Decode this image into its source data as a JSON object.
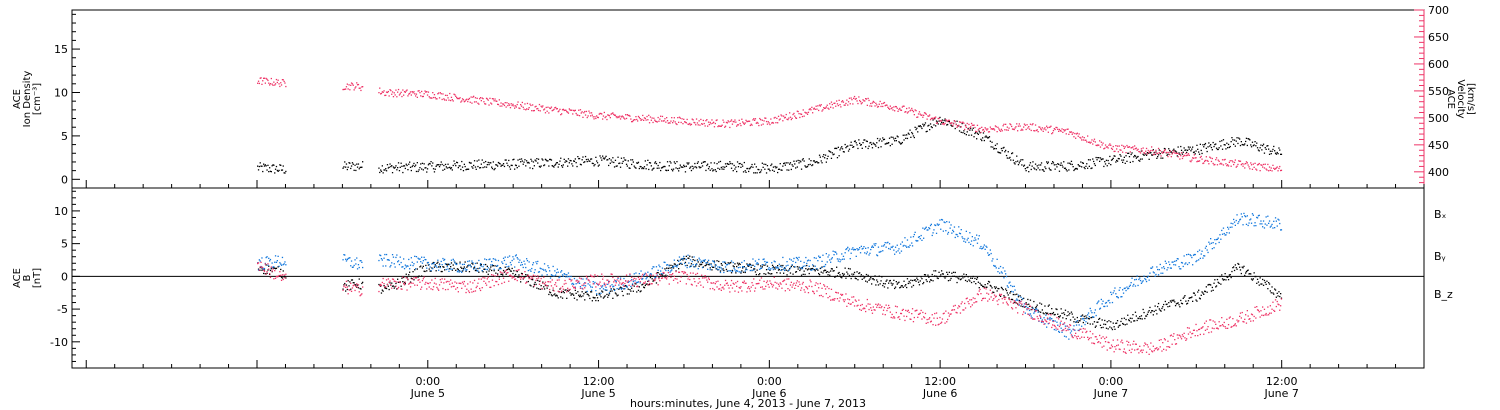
{
  "chart_data": [
    {
      "type": "scatter",
      "panel": "top",
      "ylabel_left": [
        "ACE",
        "Ion Density",
        "[cm⁻³]"
      ],
      "ylabel_right": [
        "ACE",
        "Velocity",
        "[km/s]"
      ],
      "ylim_left": [
        -1,
        19.5
      ],
      "yticks_left": [
        0,
        5,
        10,
        15
      ],
      "ylim_right": [
        370,
        700
      ],
      "yticks_right": [
        400,
        450,
        500,
        550,
        600,
        650,
        700
      ],
      "colors": {
        "density": "#000000",
        "velocity": "#ee3366"
      },
      "series": [
        {
          "key": "density",
          "axis": "left",
          "x": [
            -12,
            -10,
            -6,
            -5,
            -3,
            0,
            3,
            6,
            9,
            12,
            15,
            18,
            21,
            24,
            27,
            30,
            33,
            36,
            39,
            42,
            45,
            48,
            51,
            54,
            57,
            60
          ],
          "y": [
            1.4,
            1.2,
            1.5,
            1.6,
            1.4,
            1.5,
            1.7,
            1.8,
            2.0,
            2.2,
            1.8,
            1.5,
            1.6,
            1.3,
            2.0,
            4.0,
            4.5,
            7.0,
            5.0,
            1.5,
            1.6,
            2.2,
            3.0,
            3.5,
            4.5,
            3.0
          ]
        },
        {
          "key": "velocity",
          "axis": "right",
          "x": [
            -12,
            -10,
            -6,
            -5,
            -3,
            0,
            3,
            6,
            9,
            12,
            15,
            18,
            21,
            24,
            27,
            30,
            33,
            36,
            39,
            42,
            45,
            48,
            51,
            54,
            57,
            60
          ],
          "y": [
            570,
            565,
            560,
            560,
            548,
            545,
            535,
            525,
            515,
            505,
            500,
            495,
            490,
            495,
            515,
            535,
            520,
            495,
            480,
            485,
            475,
            445,
            440,
            425,
            415,
            405
          ]
        }
      ]
    },
    {
      "type": "scatter",
      "panel": "bottom",
      "ylabel_left": [
        "ACE",
        "B",
        "[nT]"
      ],
      "ylim": [
        -14,
        13.5
      ],
      "yticks": [
        -10,
        -5,
        0,
        5,
        10
      ],
      "legend": [
        "Bₓ",
        "Bᵧ",
        "B_z"
      ],
      "legend_placement": "right",
      "colors": {
        "Bx": "#000000",
        "By": "#1177dd",
        "Bz": "#ee3366"
      },
      "series": [
        {
          "key": "Bx",
          "x": [
            -12,
            -10,
            -6,
            -5,
            -3,
            0,
            3,
            6,
            9,
            12,
            15,
            18,
            21,
            24,
            27,
            30,
            33,
            36,
            39,
            42,
            45,
            48,
            51,
            54,
            57,
            60
          ],
          "y": [
            1.5,
            0.5,
            -1.5,
            -1.0,
            -2.0,
            1.5,
            1.5,
            0.5,
            -2.5,
            -3.0,
            -1.5,
            2.5,
            1.5,
            1.0,
            1.0,
            0.5,
            -1.5,
            0.5,
            -1.0,
            -4.0,
            -6.0,
            -7.5,
            -5.0,
            -3.0,
            1.5,
            -3.0
          ]
        },
        {
          "key": "By",
          "x": [
            -12,
            -10,
            -6,
            -5,
            -3,
            0,
            3,
            6,
            9,
            12,
            15,
            18,
            21,
            24,
            27,
            30,
            33,
            36,
            39,
            42,
            45,
            48,
            51,
            54,
            57,
            60
          ],
          "y": [
            2.0,
            2.5,
            2.5,
            2.0,
            2.5,
            2.0,
            1.5,
            2.5,
            0.5,
            -2.0,
            0.0,
            2.5,
            1.5,
            2.0,
            2.0,
            4.0,
            4.5,
            8.0,
            5.0,
            -5.0,
            -8.5,
            -3.0,
            1.0,
            3.0,
            9.0,
            8.0
          ]
        },
        {
          "key": "Bz",
          "x": [
            -12,
            -10,
            -6,
            -5,
            -3,
            0,
            3,
            6,
            9,
            12,
            15,
            18,
            21,
            24,
            27,
            30,
            33,
            36,
            39,
            42,
            45,
            48,
            51,
            54,
            57,
            60
          ],
          "y": [
            2.0,
            -0.5,
            -1.5,
            -2.0,
            -1.0,
            -1.0,
            -1.5,
            0.5,
            -1.5,
            -0.5,
            -0.5,
            0.0,
            -1.5,
            -1.0,
            -1.5,
            -4.0,
            -5.5,
            -6.5,
            -2.5,
            -5.0,
            -8.0,
            -10.5,
            -11.0,
            -8.0,
            -6.5,
            -4.0
          ]
        }
      ]
    }
  ],
  "x_axis": {
    "range": [
      -25,
      70
    ],
    "ticks": [
      {
        "x": 0,
        "line1": "0:00",
        "line2": "June 5"
      },
      {
        "x": 12,
        "line1": "12:00",
        "line2": "June 5"
      },
      {
        "x": 24,
        "line1": "0:00",
        "line2": "June 6"
      },
      {
        "x": 36,
        "line1": "12:00",
        "line2": "June 6"
      },
      {
        "x": 48,
        "line1": "0:00",
        "line2": "June 7"
      },
      {
        "x": 60,
        "line1": "12:00",
        "line2": "June 7"
      }
    ],
    "xlabel": "hours:minutes, June  4, 2013 - June  7, 2013"
  }
}
